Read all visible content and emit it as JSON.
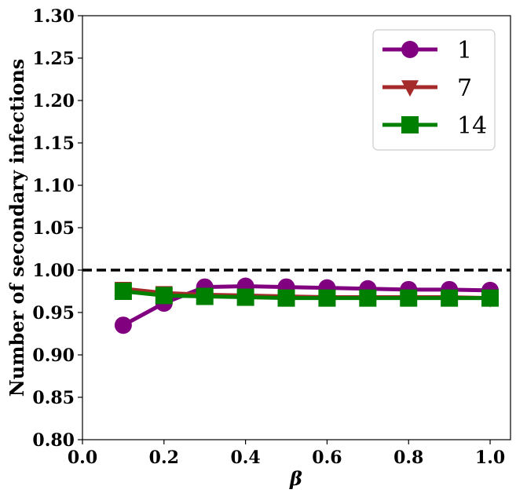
{
  "chart_data": {
    "type": "line",
    "xlabel": "β",
    "ylabel": "Number of secondary infections",
    "xlim": [
      0.0,
      1.05
    ],
    "ylim": [
      0.8,
      1.3
    ],
    "xticks": [
      "0.0",
      "0.2",
      "0.4",
      "0.6",
      "0.8",
      "1.0"
    ],
    "yticks": [
      "0.80",
      "0.85",
      "0.90",
      "0.95",
      "1.00",
      "1.05",
      "1.10",
      "1.15",
      "1.20",
      "1.25",
      "1.30"
    ],
    "reference_line": {
      "y": 1.0,
      "style": "dashed",
      "color": "#000000"
    },
    "grid": false,
    "legend_position": "top-right",
    "x": [
      0.1,
      0.2,
      0.3,
      0.4,
      0.5,
      0.6,
      0.7,
      0.8,
      0.9,
      1.0
    ],
    "series": [
      {
        "name": "1",
        "marker": "circle",
        "color": "#800080",
        "values": [
          0.935,
          0.961,
          0.98,
          0.981,
          0.98,
          0.979,
          0.978,
          0.977,
          0.977,
          0.976
        ]
      },
      {
        "name": "7",
        "marker": "triangle-down",
        "color": "#A52A2A",
        "values": [
          0.978,
          0.973,
          0.971,
          0.97,
          0.969,
          0.968,
          0.968,
          0.968,
          0.968,
          0.967
        ]
      },
      {
        "name": "14",
        "marker": "square",
        "color": "#008000",
        "values": [
          0.975,
          0.97,
          0.969,
          0.968,
          0.967,
          0.967,
          0.967,
          0.967,
          0.967,
          0.967
        ]
      }
    ]
  }
}
